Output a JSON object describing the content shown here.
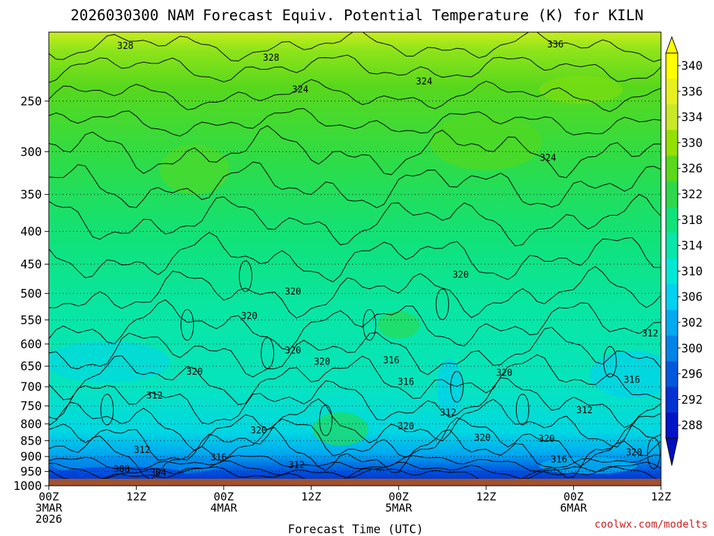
{
  "chart_data": {
    "type": "heatmap",
    "title": "2026030300 NAM Forecast Equiv. Potential Temperature (K) for KILN",
    "xlabel": "Forecast Time (UTC)",
    "ylabel": "",
    "credit": "coolwx.com/modelts",
    "x_hours": [
      0,
      84
    ],
    "y_levels": [
      250,
      300,
      350,
      400,
      450,
      500,
      550,
      600,
      650,
      700,
      750,
      800,
      850,
      900,
      950,
      1000
    ],
    "ylim": [
      195,
      1000
    ],
    "surface_pressure": 975,
    "x_ticks": [
      {
        "hour": 0,
        "l1": "00Z",
        "l2": "3MAR",
        "l3": "2026"
      },
      {
        "hour": 12,
        "l1": "12Z",
        "l2": "",
        "l3": ""
      },
      {
        "hour": 24,
        "l1": "00Z",
        "l2": "4MAR",
        "l3": ""
      },
      {
        "hour": 36,
        "l1": "12Z",
        "l2": "",
        "l3": ""
      },
      {
        "hour": 48,
        "l1": "00Z",
        "l2": "5MAR",
        "l3": ""
      },
      {
        "hour": 60,
        "l1": "12Z",
        "l2": "",
        "l3": ""
      },
      {
        "hour": 72,
        "l1": "00Z",
        "l2": "6MAR",
        "l3": ""
      },
      {
        "hour": 84,
        "l1": "12Z",
        "l2": "",
        "l3": ""
      }
    ],
    "colorbar": {
      "labels": [
        340,
        336,
        334,
        330,
        326,
        322,
        318,
        314,
        310,
        306,
        302,
        300,
        296,
        292,
        288
      ],
      "colors": [
        "#ffff00",
        "#e6f020",
        "#c8e828",
        "#96e000",
        "#5ad81a",
        "#2ed84a",
        "#10e27a",
        "#08e6aa",
        "#00e8d6",
        "#00d2f0",
        "#00aaf0",
        "#0084e6",
        "#0058dc",
        "#0032d2",
        "#0014c8"
      ]
    },
    "contour_labels": [
      {
        "text": "328",
        "hour": 10.5,
        "p": 205
      },
      {
        "text": "328",
        "hour": 30.5,
        "p": 214
      },
      {
        "text": "336",
        "hour": 69.5,
        "p": 204
      },
      {
        "text": "324",
        "hour": 34.5,
        "p": 240
      },
      {
        "text": "324",
        "hour": 51.5,
        "p": 233
      },
      {
        "text": "324",
        "hour": 68.5,
        "p": 307
      },
      {
        "text": "320",
        "hour": 56.5,
        "p": 468
      },
      {
        "text": "320",
        "hour": 33.5,
        "p": 497
      },
      {
        "text": "320",
        "hour": 27.5,
        "p": 543
      },
      {
        "text": "320",
        "hour": 33.5,
        "p": 615
      },
      {
        "text": "320",
        "hour": 37.5,
        "p": 640
      },
      {
        "text": "320",
        "hour": 20.0,
        "p": 664
      },
      {
        "text": "316",
        "hour": 47.0,
        "p": 637
      },
      {
        "text": "316",
        "hour": 49.0,
        "p": 688
      },
      {
        "text": "320",
        "hour": 62.5,
        "p": 666
      },
      {
        "text": "316",
        "hour": 80.0,
        "p": 683
      },
      {
        "text": "312",
        "hour": 14.5,
        "p": 723
      },
      {
        "text": "312",
        "hour": 54.8,
        "p": 769
      },
      {
        "text": "312",
        "hour": 73.5,
        "p": 762
      },
      {
        "text": "312",
        "hour": 82.5,
        "p": 578
      },
      {
        "text": "320",
        "hour": 28.8,
        "p": 820
      },
      {
        "text": "320",
        "hour": 49.0,
        "p": 808
      },
      {
        "text": "320",
        "hour": 59.5,
        "p": 842
      },
      {
        "text": "320",
        "hour": 68.3,
        "p": 845
      },
      {
        "text": "320",
        "hour": 80.3,
        "p": 887
      },
      {
        "text": "312",
        "hour": 12.8,
        "p": 880
      },
      {
        "text": "316",
        "hour": 23.3,
        "p": 903
      },
      {
        "text": "316",
        "hour": 70.0,
        "p": 910
      },
      {
        "text": "312",
        "hour": 34.0,
        "p": 929
      },
      {
        "text": "308",
        "hour": 10.0,
        "p": 943
      },
      {
        "text": "304",
        "hour": 15.0,
        "p": 955
      }
    ]
  }
}
